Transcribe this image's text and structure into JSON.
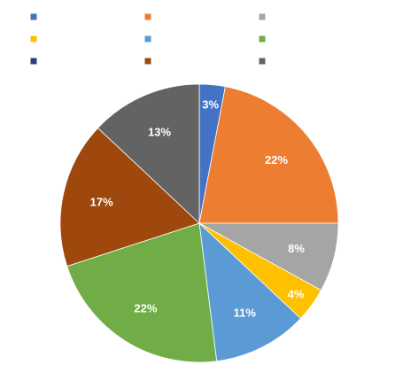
{
  "chart_data": {
    "type": "pie",
    "title": "",
    "legend": {
      "placement": "top",
      "columns": 3,
      "entries": [
        {
          "label": "",
          "color": "#4472C4"
        },
        {
          "label": "",
          "color": "#ED7D31"
        },
        {
          "label": "",
          "color": "#A5A5A5"
        },
        {
          "label": "",
          "color": "#FFC000"
        },
        {
          "label": "",
          "color": "#5B9BD5"
        },
        {
          "label": "",
          "color": "#70AD47"
        },
        {
          "label": "",
          "color": "#264478"
        },
        {
          "label": "",
          "color": "#9E480E"
        },
        {
          "label": "",
          "color": "#636363"
        }
      ]
    },
    "slices": [
      {
        "value": 3,
        "label": "3%",
        "color": "#4472C4"
      },
      {
        "value": 22,
        "label": "22%",
        "color": "#ED7D31"
      },
      {
        "value": 8,
        "label": "8%",
        "color": "#A5A5A5"
      },
      {
        "value": 4,
        "label": "4%",
        "color": "#FFC000"
      },
      {
        "value": 11,
        "label": "11%",
        "color": "#5B9BD5"
      },
      {
        "value": 22,
        "label": "22%",
        "color": "#70AD47"
      },
      {
        "value": 17,
        "label": "17%",
        "color": "#9E480E"
      },
      {
        "value": 13,
        "label": "13%",
        "color": "#636363"
      }
    ]
  }
}
